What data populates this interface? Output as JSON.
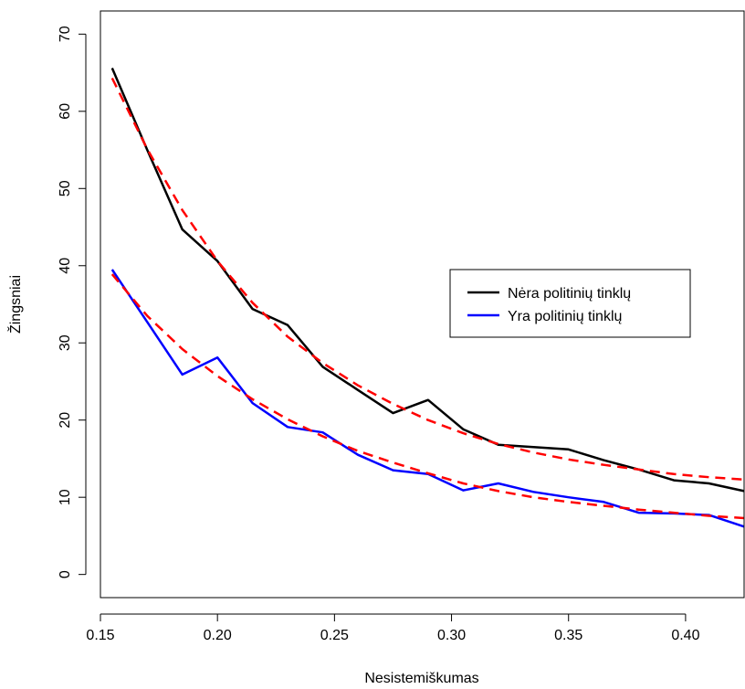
{
  "chart_data": {
    "type": "line",
    "title": "",
    "xlabel": "Nesistemiškumas",
    "ylabel": "Žingsniai",
    "xlim": [
      0.15,
      0.425
    ],
    "ylim": [
      -3,
      73
    ],
    "x_ticks": [
      "0.15",
      "0.20",
      "0.25",
      "0.30",
      "0.35",
      "0.40"
    ],
    "x_tick_values": [
      0.15,
      0.2,
      0.25,
      0.3,
      0.35,
      0.4
    ],
    "y_ticks": [
      "0",
      "10",
      "20",
      "30",
      "40",
      "50",
      "60",
      "70"
    ],
    "y_tick_values": [
      0,
      10,
      20,
      30,
      40,
      50,
      60,
      70
    ],
    "grid": false,
    "legend_position": "right",
    "series": [
      {
        "name": "Nėra politinių tinklų",
        "color": "#000000",
        "style": "solid",
        "x": [
          0.155,
          0.17,
          0.185,
          0.2,
          0.215,
          0.23,
          0.245,
          0.26,
          0.275,
          0.29,
          0.305,
          0.32,
          0.335,
          0.35,
          0.365,
          0.38,
          0.395,
          0.41,
          0.425
        ],
        "y": [
          65.6,
          55.0,
          44.7,
          40.6,
          34.4,
          32.3,
          26.9,
          23.9,
          20.9,
          22.6,
          18.8,
          16.8,
          16.5,
          16.2,
          14.8,
          13.6,
          12.2,
          11.8,
          10.8
        ]
      },
      {
        "name": "Yra politinių tinklų",
        "color": "#0000ff",
        "style": "solid",
        "x": [
          0.155,
          0.17,
          0.185,
          0.2,
          0.215,
          0.23,
          0.245,
          0.26,
          0.275,
          0.29,
          0.305,
          0.32,
          0.335,
          0.35,
          0.365,
          0.38,
          0.395,
          0.41,
          0.425
        ],
        "y": [
          39.5,
          32.7,
          25.9,
          28.1,
          22.2,
          19.1,
          18.4,
          15.5,
          13.5,
          13.0,
          10.9,
          11.8,
          10.7,
          10.0,
          9.4,
          8.0,
          7.9,
          7.7,
          6.2
        ]
      },
      {
        "color": "#ff0000",
        "style": "dashed",
        "x": [
          0.155,
          0.17,
          0.185,
          0.2,
          0.215,
          0.23,
          0.245,
          0.26,
          0.275,
          0.29,
          0.305,
          0.32,
          0.335,
          0.35,
          0.365,
          0.38,
          0.395,
          0.41,
          0.425
        ],
        "y": [
          64.3,
          55.1,
          47.2,
          40.6,
          35.2,
          30.8,
          27.4,
          24.5,
          22.1,
          20.0,
          18.3,
          16.9,
          15.8,
          14.9,
          14.2,
          13.6,
          13.0,
          12.6,
          12.3
        ]
      },
      {
        "color": "#ff0000",
        "style": "dashed",
        "x": [
          0.155,
          0.17,
          0.185,
          0.2,
          0.215,
          0.23,
          0.245,
          0.26,
          0.275,
          0.29,
          0.305,
          0.32,
          0.335,
          0.35,
          0.365,
          0.38,
          0.395,
          0.41,
          0.425
        ],
        "y": [
          38.9,
          33.5,
          29.2,
          25.7,
          22.7,
          20.1,
          17.9,
          16.0,
          14.5,
          13.1,
          11.8,
          10.8,
          10.0,
          9.4,
          8.9,
          8.4,
          8.0,
          7.6,
          7.3
        ]
      }
    ]
  }
}
